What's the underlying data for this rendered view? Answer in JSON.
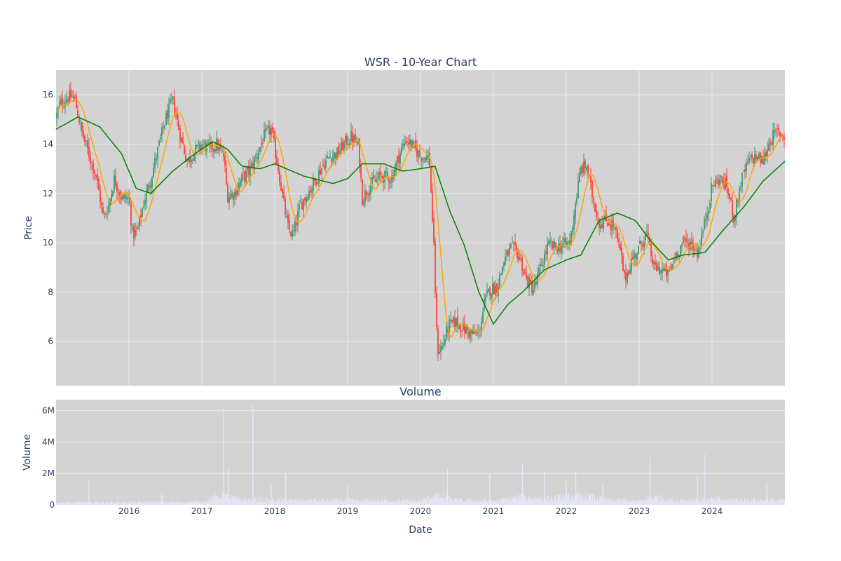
{
  "chart_data": {
    "type": "candlestick",
    "title": "WSR - 10-Year Chart",
    "colors": {
      "increasing": "#3d9970",
      "decreasing": "#ff4136",
      "ma_short": "#ffa500",
      "ma_long": "#008000",
      "volume": "#e6e6fa",
      "plot_bg": "#d3d3d3"
    },
    "price_panel": {
      "ylabel": "Price",
      "ylim": [
        4.2,
        17.0
      ],
      "yticks": [
        "6",
        "8",
        "10",
        "12",
        "14",
        "16"
      ],
      "ytick_values": [
        6,
        8,
        10,
        12,
        14,
        16
      ],
      "close_anchors": [
        [
          2015.0,
          15.1
        ],
        [
          2015.05,
          15.6
        ],
        [
          2015.15,
          15.9
        ],
        [
          2015.25,
          15.9
        ],
        [
          2015.35,
          14.5
        ],
        [
          2015.45,
          13.6
        ],
        [
          2015.55,
          12.7
        ],
        [
          2015.65,
          11.0
        ],
        [
          2015.72,
          11.5
        ],
        [
          2015.8,
          12.6
        ],
        [
          2015.9,
          11.8
        ],
        [
          2016.0,
          11.8
        ],
        [
          2016.05,
          10.3
        ],
        [
          2016.12,
          10.5
        ],
        [
          2016.2,
          11.6
        ],
        [
          2016.3,
          12.6
        ],
        [
          2016.4,
          13.8
        ],
        [
          2016.5,
          15.0
        ],
        [
          2016.6,
          15.8
        ],
        [
          2016.7,
          14.4
        ],
        [
          2016.8,
          13.3
        ],
        [
          2016.9,
          13.7
        ],
        [
          2017.0,
          14.0
        ],
        [
          2017.1,
          13.8
        ],
        [
          2017.2,
          14.0
        ],
        [
          2017.3,
          13.5
        ],
        [
          2017.35,
          11.9
        ],
        [
          2017.45,
          12.0
        ],
        [
          2017.55,
          12.6
        ],
        [
          2017.65,
          12.9
        ],
        [
          2017.75,
          13.5
        ],
        [
          2017.85,
          14.3
        ],
        [
          2017.95,
          14.6
        ],
        [
          2018.05,
          13.0
        ],
        [
          2018.1,
          12.0
        ],
        [
          2018.18,
          10.6
        ],
        [
          2018.25,
          10.3
        ],
        [
          2018.35,
          11.5
        ],
        [
          2018.45,
          12.0
        ],
        [
          2018.55,
          12.5
        ],
        [
          2018.65,
          13.1
        ],
        [
          2018.75,
          13.5
        ],
        [
          2018.85,
          13.6
        ],
        [
          2018.95,
          14.0
        ],
        [
          2019.05,
          14.3
        ],
        [
          2019.15,
          13.9
        ],
        [
          2019.2,
          11.8
        ],
        [
          2019.3,
          12.3
        ],
        [
          2019.45,
          12.7
        ],
        [
          2019.6,
          12.6
        ],
        [
          2019.7,
          13.5
        ],
        [
          2019.8,
          14.2
        ],
        [
          2019.9,
          13.9
        ],
        [
          2020.0,
          13.5
        ],
        [
          2020.12,
          13.5
        ],
        [
          2020.18,
          10.0
        ],
        [
          2020.23,
          5.6
        ],
        [
          2020.3,
          5.8
        ],
        [
          2020.38,
          6.6
        ],
        [
          2020.48,
          6.8
        ],
        [
          2020.6,
          6.5
        ],
        [
          2020.7,
          6.3
        ],
        [
          2020.8,
          6.3
        ],
        [
          2020.88,
          7.6
        ],
        [
          2020.95,
          8.1
        ],
        [
          2021.05,
          8.2
        ],
        [
          2021.15,
          9.3
        ],
        [
          2021.25,
          9.8
        ],
        [
          2021.35,
          9.5
        ],
        [
          2021.45,
          8.5
        ],
        [
          2021.55,
          8.1
        ],
        [
          2021.65,
          9.0
        ],
        [
          2021.75,
          9.9
        ],
        [
          2021.85,
          9.8
        ],
        [
          2021.95,
          9.9
        ],
        [
          2022.05,
          10.0
        ],
        [
          2022.12,
          11.5
        ],
        [
          2022.2,
          13.0
        ],
        [
          2022.28,
          13.1
        ],
        [
          2022.35,
          12.0
        ],
        [
          2022.45,
          10.8
        ],
        [
          2022.55,
          10.9
        ],
        [
          2022.65,
          10.7
        ],
        [
          2022.75,
          9.5
        ],
        [
          2022.8,
          8.5
        ],
        [
          2022.9,
          9.3
        ],
        [
          2023.0,
          9.8
        ],
        [
          2023.1,
          10.4
        ],
        [
          2023.2,
          9.0
        ],
        [
          2023.3,
          8.9
        ],
        [
          2023.4,
          8.7
        ],
        [
          2023.5,
          9.5
        ],
        [
          2023.6,
          10.0
        ],
        [
          2023.7,
          10.0
        ],
        [
          2023.8,
          9.6
        ],
        [
          2023.9,
          10.8
        ],
        [
          2024.0,
          12.3
        ],
        [
          2024.1,
          12.6
        ],
        [
          2024.2,
          12.3
        ],
        [
          2024.3,
          11.0
        ],
        [
          2024.4,
          12.5
        ],
        [
          2024.5,
          13.3
        ],
        [
          2024.6,
          13.5
        ],
        [
          2024.7,
          13.3
        ],
        [
          2024.8,
          14.2
        ],
        [
          2024.9,
          14.5
        ],
        [
          2025.0,
          14.3
        ]
      ],
      "ma_long_anchors": [
        [
          2015.0,
          14.6
        ],
        [
          2015.3,
          15.1
        ],
        [
          2015.6,
          14.7
        ],
        [
          2015.9,
          13.6
        ],
        [
          2016.1,
          12.2
        ],
        [
          2016.3,
          12.0
        ],
        [
          2016.6,
          12.9
        ],
        [
          2016.9,
          13.6
        ],
        [
          2017.15,
          14.1
        ],
        [
          2017.35,
          13.8
        ],
        [
          2017.55,
          13.1
        ],
        [
          2017.8,
          13.0
        ],
        [
          2018.0,
          13.2
        ],
        [
          2018.4,
          12.7
        ],
        [
          2018.8,
          12.4
        ],
        [
          2019.0,
          12.6
        ],
        [
          2019.2,
          13.2
        ],
        [
          2019.5,
          13.2
        ],
        [
          2019.75,
          12.9
        ],
        [
          2020.0,
          13.0
        ],
        [
          2020.2,
          13.1
        ],
        [
          2020.4,
          11.3
        ],
        [
          2020.6,
          9.9
        ],
        [
          2020.8,
          8.0
        ],
        [
          2021.0,
          6.7
        ],
        [
          2021.2,
          7.5
        ],
        [
          2021.4,
          8.0
        ],
        [
          2021.7,
          8.9
        ],
        [
          2022.0,
          9.3
        ],
        [
          2022.2,
          9.5
        ],
        [
          2022.45,
          10.9
        ],
        [
          2022.7,
          11.2
        ],
        [
          2022.95,
          10.9
        ],
        [
          2023.15,
          10.1
        ],
        [
          2023.4,
          9.3
        ],
        [
          2023.6,
          9.5
        ],
        [
          2023.9,
          9.6
        ],
        [
          2024.15,
          10.5
        ],
        [
          2024.45,
          11.5
        ],
        [
          2024.7,
          12.5
        ],
        [
          2025.0,
          13.3
        ]
      ]
    },
    "volume_panel": {
      "title": "Volume",
      "ylabel": "Volume",
      "ylim": [
        0,
        6700000
      ],
      "yticks": [
        "0",
        "2M",
        "4M",
        "6M"
      ],
      "ytick_values": [
        0,
        2000000,
        4000000,
        6000000
      ],
      "base_levels": [
        [
          2015.0,
          150000
        ],
        [
          2016.0,
          180000
        ],
        [
          2017.0,
          200000
        ],
        [
          2017.3,
          600000
        ],
        [
          2017.5,
          350000
        ],
        [
          2018.0,
          300000
        ],
        [
          2019.0,
          300000
        ],
        [
          2020.0,
          250000
        ],
        [
          2020.2,
          600000
        ],
        [
          2020.5,
          300000
        ],
        [
          2021.0,
          250000
        ],
        [
          2021.4,
          500000
        ],
        [
          2021.8,
          400000
        ],
        [
          2022.2,
          600000
        ],
        [
          2022.6,
          300000
        ],
        [
          2023.0,
          250000
        ],
        [
          2023.2,
          500000
        ],
        [
          2023.5,
          300000
        ],
        [
          2024.0,
          350000
        ],
        [
          2025.0,
          300000
        ]
      ],
      "spikes": [
        [
          2015.45,
          1600000
        ],
        [
          2016.45,
          700000
        ],
        [
          2017.3,
          6100000
        ],
        [
          2017.37,
          2400000
        ],
        [
          2017.7,
          6300000
        ],
        [
          2017.95,
          1400000
        ],
        [
          2018.15,
          2000000
        ],
        [
          2019.0,
          1300000
        ],
        [
          2020.37,
          2300000
        ],
        [
          2020.95,
          2000000
        ],
        [
          2021.4,
          2600000
        ],
        [
          2021.7,
          2100000
        ],
        [
          2022.0,
          1500000
        ],
        [
          2022.13,
          2100000
        ],
        [
          2022.5,
          1400000
        ],
        [
          2023.15,
          3000000
        ],
        [
          2023.8,
          1900000
        ],
        [
          2023.9,
          3200000
        ],
        [
          2024.75,
          1400000
        ]
      ]
    },
    "x_axis": {
      "xlabel": "Date",
      "xlim": [
        2015.0,
        2025.0
      ],
      "xticks": [
        "2016",
        "2017",
        "2018",
        "2019",
        "2020",
        "2021",
        "2022",
        "2023",
        "2024"
      ],
      "xtick_values": [
        2016,
        2017,
        2018,
        2019,
        2020,
        2021,
        2022,
        2023,
        2024
      ]
    }
  }
}
